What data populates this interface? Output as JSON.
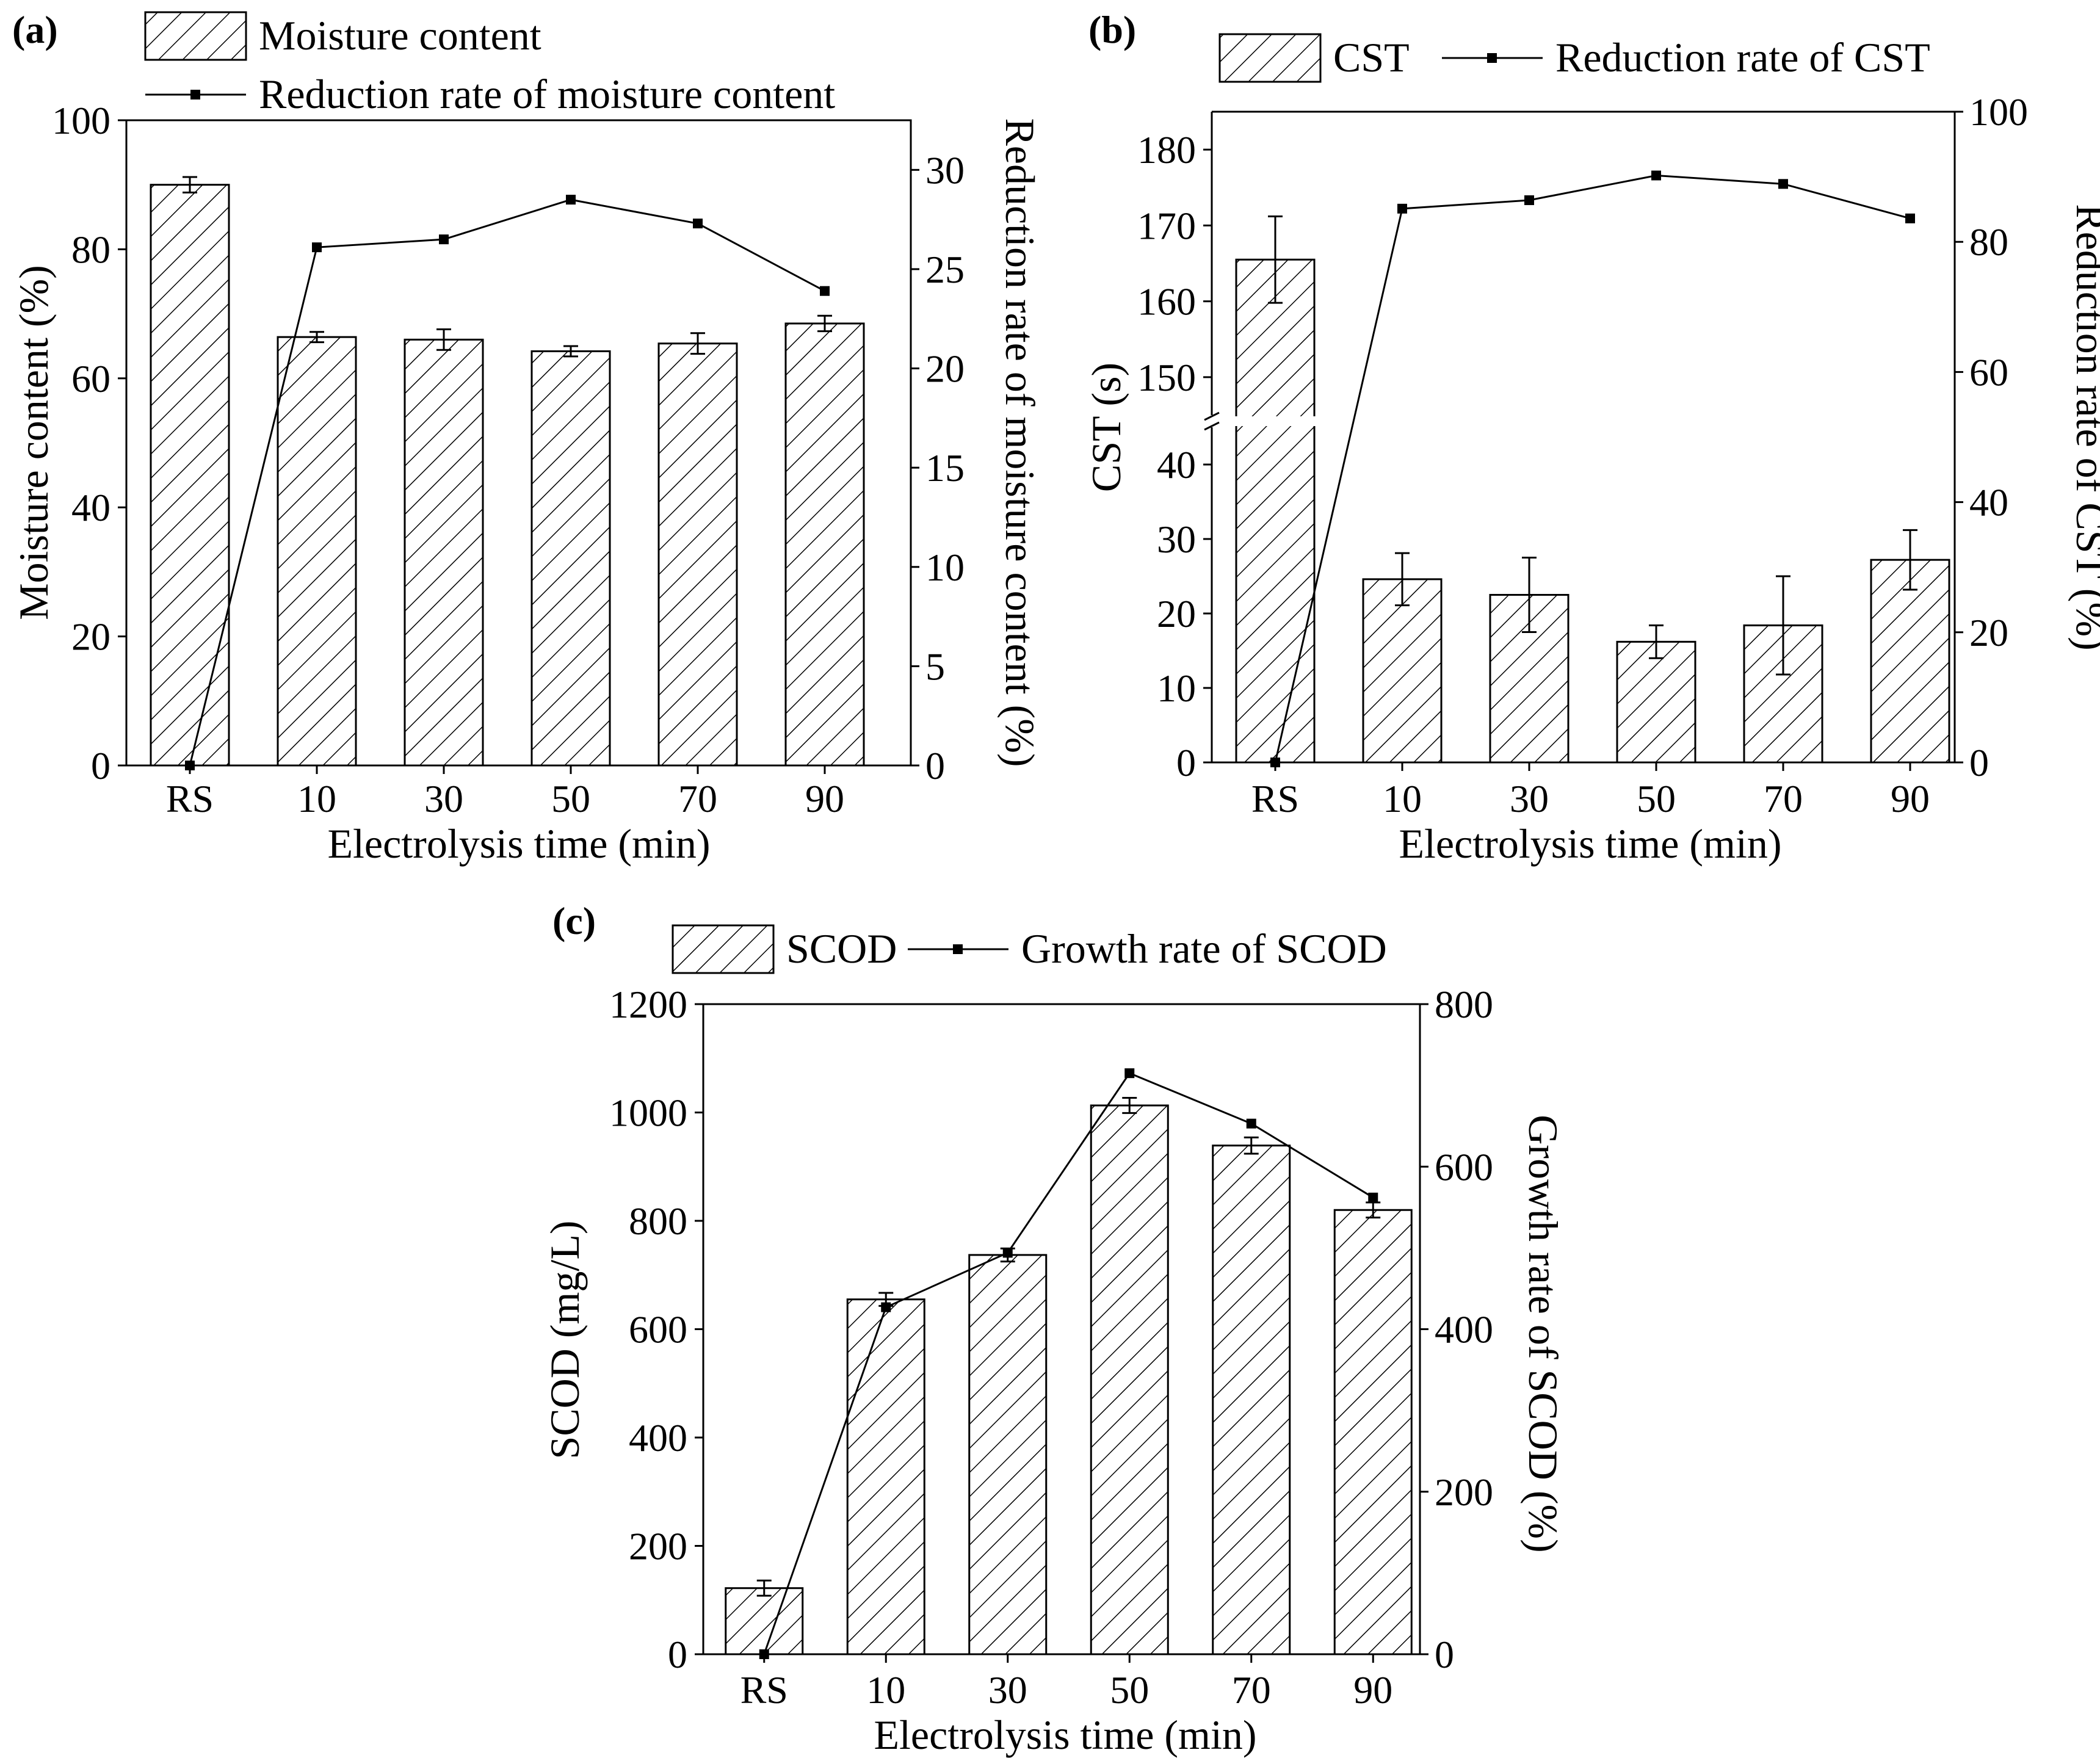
{
  "figure": {
    "colors": {
      "ink": "#000000",
      "background": "#ffffff"
    }
  },
  "chart_data": [
    {
      "id": "a",
      "panel_label": "(a)",
      "type": "bar+line",
      "categories": [
        "RS",
        "10",
        "30",
        "50",
        "70",
        "90"
      ],
      "xlabel": "Electrolysis time (min)",
      "ylabel_left": "Moisture content (%)",
      "ylabel_right": "Reduction rate of moisture content (%)",
      "left_axis": {
        "ylim": [
          0,
          100
        ],
        "ticks": [
          0,
          20,
          40,
          60,
          80,
          100
        ]
      },
      "right_axis": {
        "ylim": [
          0,
          32.5
        ],
        "ticks": [
          0,
          5,
          10,
          15,
          20,
          25,
          30
        ]
      },
      "bars": {
        "name": "Moisture content",
        "values": [
          90.0,
          66.4,
          66.0,
          64.2,
          65.4,
          68.5
        ],
        "errors": [
          1.2,
          0.8,
          1.6,
          0.8,
          1.6,
          1.2
        ]
      },
      "line": {
        "name": "Reduction rate of moisture content",
        "values": [
          0,
          26.1,
          26.5,
          28.5,
          27.3,
          23.9
        ]
      },
      "legend": {
        "placement": "top-left",
        "layout": "stacked"
      }
    },
    {
      "id": "b",
      "panel_label": "(b)",
      "type": "bar+line",
      "categories": [
        "RS",
        "10",
        "30",
        "50",
        "70",
        "90"
      ],
      "xlabel": "Electrolysis time (min)",
      "ylabel_left": "CST (s)",
      "ylabel_right": "Reduction rate of CST (%)",
      "left_axis": {
        "broken": true,
        "lower_range": [
          0,
          45
        ],
        "lower_ticks": [
          0,
          10,
          20,
          30,
          40
        ],
        "upper_range": [
          145,
          185
        ],
        "upper_ticks": [
          150,
          160,
          170,
          180
        ]
      },
      "right_axis": {
        "ylim": [
          0,
          100
        ],
        "ticks": [
          0,
          20,
          40,
          60,
          80,
          100
        ]
      },
      "bars": {
        "name": "CST",
        "values": [
          165.5,
          24.6,
          22.5,
          16.2,
          18.4,
          27.2
        ],
        "errors": [
          5.7,
          3.5,
          5.0,
          2.2,
          6.6,
          4.0
        ]
      },
      "line": {
        "name": "Reduction rate of CST",
        "values": [
          0,
          85.1,
          86.4,
          90.2,
          88.9,
          83.6
        ]
      },
      "legend": {
        "placement": "top",
        "layout": "inline"
      }
    },
    {
      "id": "c",
      "panel_label": "(c)",
      "type": "bar+line",
      "categories": [
        "RS",
        "10",
        "30",
        "50",
        "70",
        "90"
      ],
      "xlabel": "Electrolysis time (min)",
      "ylabel_left": "SCOD (mg/L)",
      "ylabel_right": "Growth rate of SCOD (%)",
      "left_axis": {
        "ylim": [
          0,
          1200
        ],
        "ticks": [
          0,
          200,
          400,
          600,
          800,
          1000,
          1200
        ]
      },
      "right_axis": {
        "ylim": [
          0,
          800
        ],
        "ticks": [
          0,
          200,
          400,
          600,
          800
        ]
      },
      "bars": {
        "name": "SCOD",
        "values": [
          122,
          655,
          737,
          1013,
          939,
          820
        ],
        "errors": [
          14,
          12,
          12,
          14,
          15,
          14
        ]
      },
      "line": {
        "name": "Growth rate of SCOD",
        "values": [
          0,
          427,
          494,
          715,
          653,
          562
        ]
      },
      "legend": {
        "placement": "top",
        "layout": "inline"
      }
    }
  ]
}
